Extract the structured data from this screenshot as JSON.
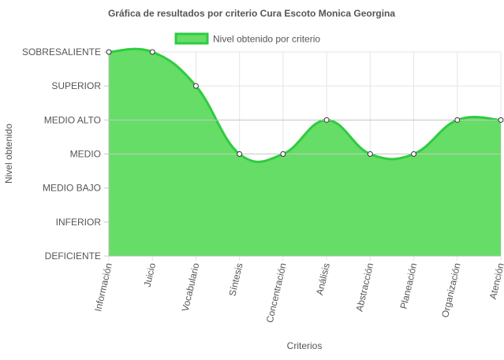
{
  "chart_data": {
    "type": "area",
    "title": "Gráfica de resultados por criterio Cura Escoto Monica Georgina",
    "xlabel": "Criterios",
    "ylabel": "Nivel obtenido",
    "legend": {
      "label": "Nivel obtenido por criterio",
      "position": "top"
    },
    "y_categories": [
      "DEFICIENTE",
      "INFERIOR",
      "MEDIO BAJO",
      "MEDIO",
      "MEDIO ALTO",
      "SUPERIOR",
      "SOBRESALIENTE"
    ],
    "categories": [
      "Información",
      "Juicio",
      "Vocabulario",
      "Síntesis",
      "Concentración",
      "Análisis",
      "Abstracción",
      "Planeación",
      "Organización",
      "Atención"
    ],
    "series": [
      {
        "name": "Nivel obtenido por criterio",
        "values": [
          "SOBRESALIENTE",
          "SOBRESALIENTE",
          "SUPERIOR",
          "MEDIO",
          "MEDIO",
          "MEDIO ALTO",
          "MEDIO",
          "MEDIO",
          "MEDIO ALTO",
          "MEDIO ALTO"
        ]
      }
    ],
    "grid": true,
    "fill_color": "#66dd66",
    "line_color": "#2ecc40",
    "gridline_color": "#e5e5e5",
    "ref_line_color": "#c8c8c8",
    "point_fill": "#ffffff",
    "point_stroke": "#333333"
  }
}
